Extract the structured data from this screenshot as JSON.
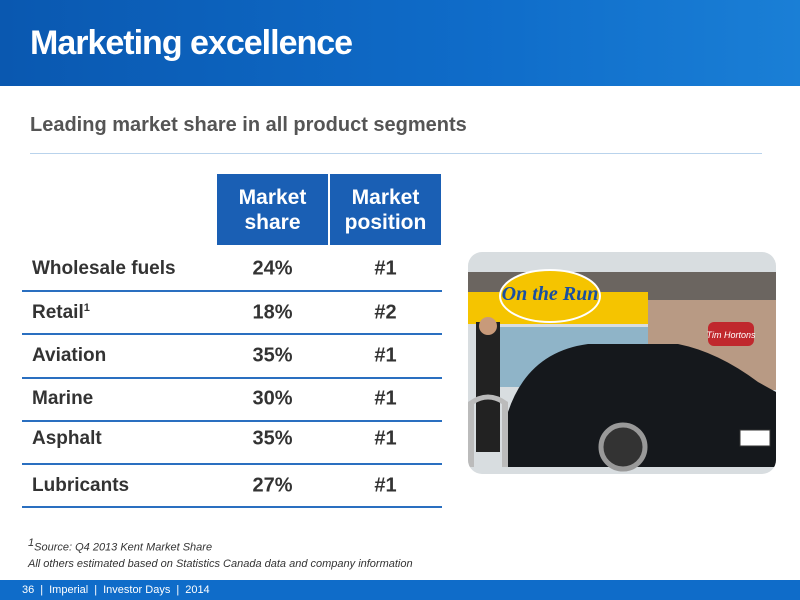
{
  "header": {
    "title": "Marketing excellence"
  },
  "subtitle": "Leading market share in all product segments",
  "table": {
    "columns": [
      "Market share",
      "Market position"
    ],
    "rows": [
      {
        "label": "Wholesale fuels",
        "share": "24%",
        "position": "#1"
      },
      {
        "label": "Retail",
        "note": "1",
        "share": "18%",
        "position": "#2"
      },
      {
        "label": "Aviation",
        "share": "35%",
        "position": "#1"
      },
      {
        "label": "Marine",
        "share": "30%",
        "position": "#1"
      },
      {
        "label": "Asphalt",
        "share": "35%",
        "position": "#1"
      },
      {
        "label": "Lubricants",
        "share": "27%",
        "position": "#1"
      }
    ]
  },
  "photo": {
    "sign": "On the Run",
    "store": "Tim Hortons"
  },
  "footnotes": {
    "source_mark": "1",
    "source": "Source: Q4 2013 Kent Market Share",
    "other": "All others estimated based on Statistics Canada data and company information"
  },
  "footer": {
    "page": "36",
    "company": "Imperial",
    "event": "Investor Days",
    "year": "2014"
  }
}
